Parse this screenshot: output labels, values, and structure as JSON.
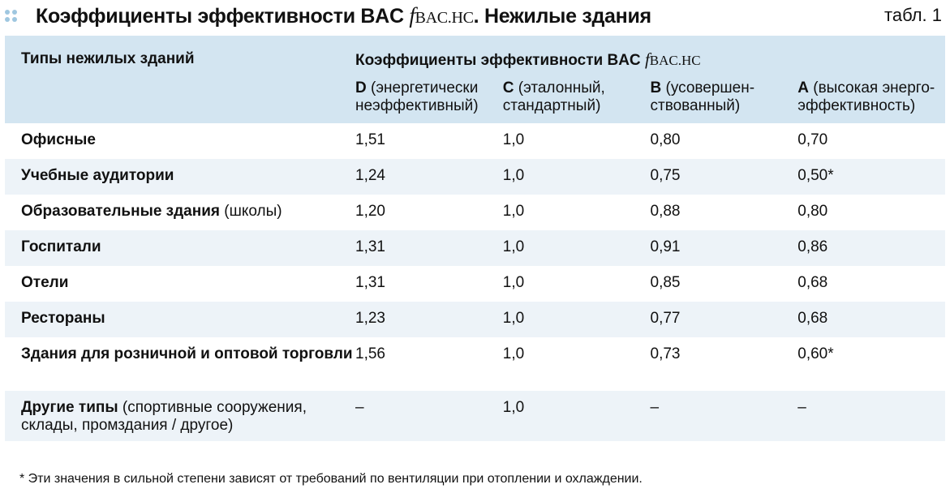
{
  "title": {
    "prefix": "Коэффициенты эффективности BAC ",
    "symbol": "f",
    "subscript": "BAC.HC",
    "suffix": ". Нежилые здания",
    "table_number": "табл. 1"
  },
  "header": {
    "col0": "Типы нежилых зданий",
    "group": {
      "prefix": "Коэффициенты эффективности BAC ",
      "symbol": "f",
      "subscript": "BAC.HC"
    },
    "classes": [
      {
        "letter": "D",
        "desc": " (энергетически неэффективный)"
      },
      {
        "letter": "C",
        "desc": " (эталонный, стандартный)"
      },
      {
        "letter": "B",
        "desc": " (усовершен-ствованный)"
      },
      {
        "letter": "A",
        "desc": " (высокая энерго-эффективность)"
      }
    ]
  },
  "rows": [
    {
      "name": "Офисные",
      "note": "",
      "values": [
        "1,51",
        "1,0",
        "0,80",
        "0,70"
      ]
    },
    {
      "name": "Учебные аудитории",
      "note": "",
      "values": [
        "1,24",
        "1,0",
        "0,75",
        "0,50*"
      ]
    },
    {
      "name": "Образовательные здания",
      "note": " (школы)",
      "values": [
        "1,20",
        "1,0",
        "0,88",
        "0,80"
      ]
    },
    {
      "name": "Госпитали",
      "note": "",
      "values": [
        "1,31",
        "1,0",
        "0,91",
        "0,86"
      ]
    },
    {
      "name": "Отели",
      "note": "",
      "values": [
        "1,31",
        "1,0",
        "0,85",
        "0,68"
      ]
    },
    {
      "name": "Рестораны",
      "note": "",
      "values": [
        "1,23",
        "1,0",
        "0,77",
        "0,68"
      ]
    },
    {
      "name": "Здания для розничной и оптовой торговли",
      "note": "",
      "values": [
        "1,56",
        "1,0",
        "0,73",
        "0,60*"
      ]
    },
    {
      "name": "Другие типы",
      "note": " (спортивные сооружения, склады, промздания / другое)",
      "values": [
        "–",
        "1,0",
        "–",
        "–"
      ]
    }
  ],
  "footnote": "* Эти значения в сильной степени зависят от требований по вентиляции при отоплении и охлаждении.",
  "colors": {
    "header_bg": "#d3e5f1",
    "alt_row_bg": "#edf3f8",
    "dots": "#9fc7e0"
  }
}
